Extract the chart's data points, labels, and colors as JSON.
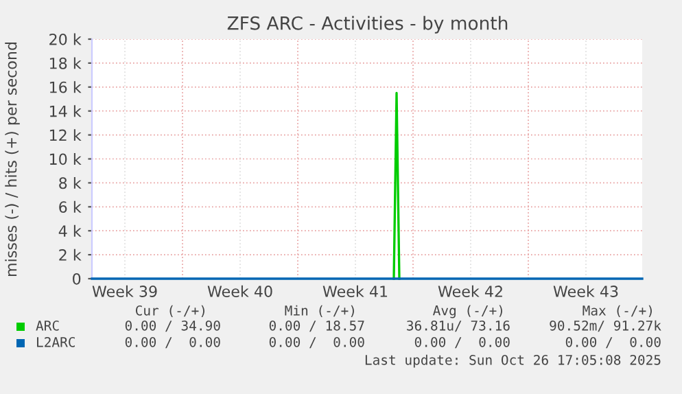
{
  "chart_data": {
    "type": "line",
    "title": "ZFS ARC - Activities - by month",
    "ylabel": "misses (-) / hits (+) per second",
    "xlim": [
      "2025-09-23T12:00",
      "2025-10-26T22:00"
    ],
    "xticks": [
      {
        "value": "2025-09-25T12:00",
        "label": "Week 39"
      },
      {
        "value": "2025-09-29",
        "label": null
      },
      {
        "value": "2025-10-02T12:00",
        "label": "Week 40"
      },
      {
        "value": "2025-10-06",
        "label": null
      },
      {
        "value": "2025-10-09T12:00",
        "label": "Week 41"
      },
      {
        "value": "2025-10-13",
        "label": null
      },
      {
        "value": "2025-10-16T12:00",
        "label": "Week 42"
      },
      {
        "value": "2025-10-20",
        "label": null
      },
      {
        "value": "2025-10-23T12:00",
        "label": "Week 43"
      }
    ],
    "ylim": [
      0,
      20000
    ],
    "yticks": [
      0,
      {
        "value": 2000,
        "label": "2 k"
      },
      {
        "value": 4000,
        "label": "4 k"
      },
      {
        "value": 6000,
        "label": "6 k"
      },
      {
        "value": 8000,
        "label": "8 k"
      },
      {
        "value": 10000,
        "label": "10 k"
      },
      {
        "value": 12000,
        "label": "12 k"
      },
      {
        "value": 14000,
        "label": "14 k"
      },
      {
        "value": 16000,
        "label": "16 k"
      },
      {
        "value": 18000,
        "label": "18 k"
      },
      {
        "value": 20000,
        "label": "20 k"
      }
    ],
    "grid": true,
    "legend": "bottom",
    "series": [
      {
        "name": "ARC",
        "color": "#00cc00",
        "x": [
          "2025-10-11T20:00",
          "2025-10-12T00:00",
          "2025-10-12T04:00"
        ],
        "values": [
          0,
          15500,
          0
        ]
      },
      {
        "name": "L2ARC",
        "color": "#0066b3",
        "x": [
          "2025-09-23T12:00",
          "2025-10-26T22:00"
        ],
        "values": [
          0,
          0
        ]
      }
    ],
    "annotations": [
      "Cur (-/+)",
      "Min (-/+)",
      "Avg (-/+)",
      "Max (-/+)",
      "0.00 / 34.90",
      "0.00 / 18.57",
      "36.81u/ 73.16",
      "90.52m/ 91.27k",
      "0.00 /  0.00",
      "0.00 /  0.00",
      "0.00 /  0.00",
      "0.00 /  0.00",
      "Last update: Sun Oct 26 17:05:08 2025"
    ]
  }
}
